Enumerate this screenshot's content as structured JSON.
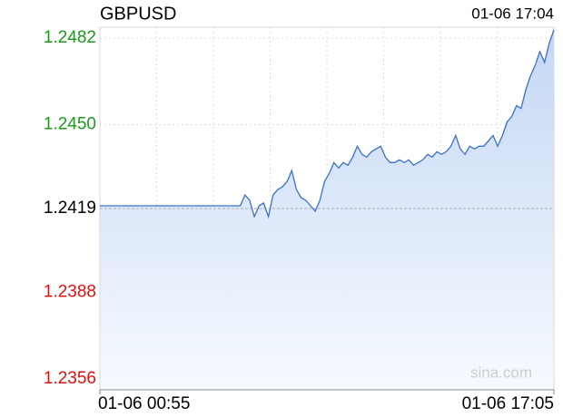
{
  "chart_data": {
    "type": "line",
    "title": "GBPUSD",
    "time": "01-06 17:04",
    "watermark": "sina.com",
    "x": [
      "01-06 00:55",
      "01-06 01:05",
      "01-06 01:15",
      "01-06 01:25",
      "01-06 01:35",
      "01-06 01:45",
      "01-06 01:55",
      "01-06 02:05",
      "01-06 02:15",
      "01-06 02:25",
      "01-06 02:35",
      "01-06 02:45",
      "01-06 02:55",
      "01-06 03:05",
      "01-06 03:15",
      "01-06 03:25",
      "01-06 03:35",
      "01-06 03:45",
      "01-06 03:55",
      "01-06 04:05",
      "01-06 04:15",
      "01-06 04:25",
      "01-06 04:35",
      "01-06 04:45",
      "01-06 04:55",
      "01-06 05:05",
      "01-06 05:15",
      "01-06 05:25",
      "01-06 05:35",
      "01-06 05:45",
      "01-06 05:55",
      "01-06 06:05",
      "01-06 06:15",
      "01-06 06:25",
      "01-06 06:35",
      "01-06 06:45",
      "01-06 06:55",
      "01-06 07:05",
      "01-06 07:15",
      "01-06 07:25",
      "01-06 07:35",
      "01-06 07:45",
      "01-06 07:55",
      "01-06 08:05",
      "01-06 08:15",
      "01-06 08:25",
      "01-06 08:35",
      "01-06 08:45",
      "01-06 08:55",
      "01-06 09:05",
      "01-06 09:15",
      "01-06 09:25",
      "01-06 09:35",
      "01-06 09:45",
      "01-06 09:55",
      "01-06 10:05",
      "01-06 10:15",
      "01-06 10:25",
      "01-06 10:35",
      "01-06 10:45",
      "01-06 10:55",
      "01-06 11:05",
      "01-06 11:15",
      "01-06 11:25",
      "01-06 11:35",
      "01-06 11:45",
      "01-06 11:55",
      "01-06 12:05",
      "01-06 12:15",
      "01-06 12:25",
      "01-06 12:35",
      "01-06 12:45",
      "01-06 12:55",
      "01-06 13:05",
      "01-06 13:15",
      "01-06 13:25",
      "01-06 13:35",
      "01-06 13:45",
      "01-06 13:55",
      "01-06 14:05",
      "01-06 14:15",
      "01-06 14:25",
      "01-06 14:35",
      "01-06 14:45",
      "01-06 14:55",
      "01-06 15:05",
      "01-06 15:15",
      "01-06 15:25",
      "01-06 15:35",
      "01-06 15:45",
      "01-06 15:55",
      "01-06 16:05",
      "01-06 16:15",
      "01-06 16:25",
      "01-06 16:35",
      "01-06 16:45",
      "01-06 16:55",
      "01-06 17:05"
    ],
    "values": [
      1.242,
      1.242,
      1.242,
      1.242,
      1.242,
      1.242,
      1.242,
      1.242,
      1.242,
      1.242,
      1.242,
      1.242,
      1.242,
      1.242,
      1.242,
      1.242,
      1.242,
      1.242,
      1.242,
      1.242,
      1.242,
      1.242,
      1.242,
      1.242,
      1.242,
      1.242,
      1.242,
      1.242,
      1.242,
      1.242,
      1.242,
      1.2424,
      1.2422,
      1.2416,
      1.242,
      1.2421,
      1.2416,
      1.2424,
      1.2426,
      1.2427,
      1.2429,
      1.2433,
      1.2426,
      1.2423,
      1.2422,
      1.242,
      1.2418,
      1.2422,
      1.2429,
      1.2432,
      1.2436,
      1.2434,
      1.2436,
      1.2435,
      1.2438,
      1.2442,
      1.2439,
      1.2438,
      1.244,
      1.2441,
      1.2442,
      1.2438,
      1.2436,
      1.2436,
      1.2437,
      1.2436,
      1.2437,
      1.2435,
      1.2436,
      1.2437,
      1.2439,
      1.2438,
      1.244,
      1.2439,
      1.244,
      1.2442,
      1.2446,
      1.2441,
      1.2439,
      1.2442,
      1.2441,
      1.2442,
      1.2442,
      1.2444,
      1.2446,
      1.2442,
      1.2446,
      1.2451,
      1.2453,
      1.2457,
      1.2456,
      1.2463,
      1.2468,
      1.2472,
      1.2477,
      1.2473,
      1.248,
      1.2485
    ],
    "color": "#3a70c6",
    "xticks": [
      "01-06 00:55",
      "01-06 17:05"
    ],
    "ylim": [
      1.2352,
      1.2486
    ],
    "yticks": [
      1.2356,
      1.2388,
      1.2419,
      1.245,
      {
        "value": 1.245,
        "label": "1.2450"
      },
      1.2482
    ],
    "baseline": 1.2419,
    "up_color": "#1a9a1a",
    "down_color": "#e01010",
    "base_color": "#000000",
    "grid": true
  }
}
